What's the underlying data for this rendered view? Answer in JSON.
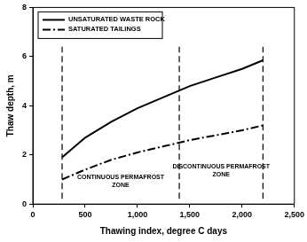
{
  "chart_data": {
    "type": "line",
    "x_label": "Thawing index, degree C days",
    "y_label": "Thaw depth, m",
    "xlim": [
      0,
      2500
    ],
    "xticks": [
      0,
      500,
      {
        "value": 1000,
        "label": "1,000"
      },
      {
        "value": 1500,
        "label": "1,500"
      },
      {
        "value": 2000,
        "label": "2,000"
      },
      {
        "value": 2500,
        "label": "2,500"
      }
    ],
    "ylim": [
      0,
      8
    ],
    "yticks": [
      0,
      2,
      4,
      6,
      8
    ],
    "grid": false,
    "legend": "upper left",
    "series": [
      {
        "name": "UNSATURATED WASTE ROCK",
        "color": "#000000",
        "line_style": "solid",
        "marker": "none",
        "x": [
          280,
          500,
          750,
          1000,
          1250,
          1500,
          1750,
          2000,
          2200
        ],
        "values": [
          1.9,
          2.7,
          3.35,
          3.9,
          4.35,
          4.8,
          5.15,
          5.5,
          5.85
        ]
      },
      {
        "name": "SATURATED TAILINGS",
        "color": "#000000",
        "line_style": "dashdot",
        "marker": "none",
        "x": [
          280,
          500,
          750,
          1000,
          1250,
          1500,
          1750,
          2000,
          2200
        ],
        "values": [
          1.0,
          1.4,
          1.8,
          2.1,
          2.35,
          2.6,
          2.8,
          3.0,
          3.2
        ]
      }
    ],
    "zone_boundaries": [
      280,
      1400,
      2200
    ],
    "annotations": [
      "CONTINUOUS PERMAFROST ZONE",
      "DISCONTINUOUS PERMAFROST ZONE"
    ]
  }
}
